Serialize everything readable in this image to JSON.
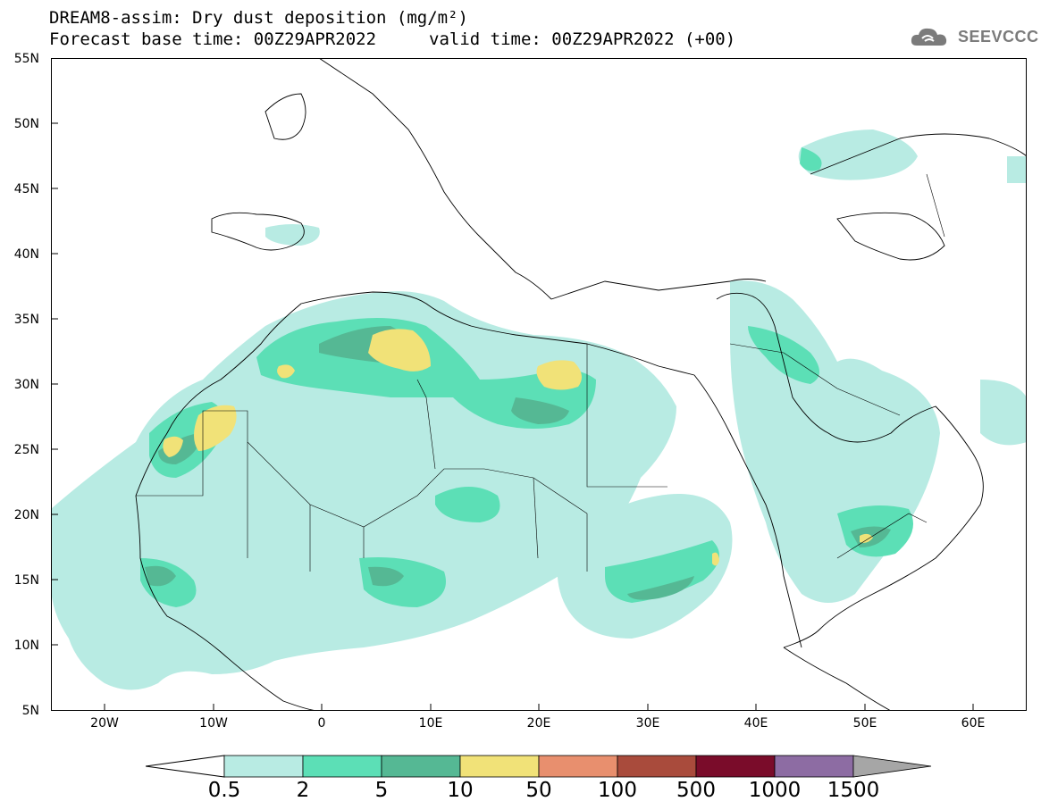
{
  "title": {
    "line1": "DREAM8-assim: Dry dust deposition (mg/m²)",
    "line2_left": "Forecast base time: 00Z29APR2022",
    "line2_right": "valid time: 00Z29APR2022 (+00)"
  },
  "logo": {
    "text": "SEEVCCC"
  },
  "map": {
    "lat_labels": [
      "55N",
      "50N",
      "45N",
      "40N",
      "35N",
      "30N",
      "25N",
      "20N",
      "15N",
      "10N",
      "5N"
    ],
    "lon_labels": [
      "20W",
      "10W",
      "0",
      "10E",
      "20E",
      "30E",
      "40E",
      "50E",
      "60E"
    ],
    "lat_range": [
      5,
      55
    ],
    "lon_range": [
      -25,
      65
    ]
  },
  "colorbar": {
    "labels": [
      "0.5",
      "2",
      "5",
      "10",
      "50",
      "100",
      "500",
      "1000",
      "1500"
    ],
    "colors": [
      "#b8ebe3",
      "#5cdfb6",
      "#55b894",
      "#f1e278",
      "#e88f6e",
      "#a94b3c",
      "#7a0c2a",
      "#8d6ca3",
      "#a6a6a6"
    ]
  },
  "colors": {
    "level1": "#b8ebe3",
    "level2": "#5cdfb6",
    "level3": "#55b894",
    "level4": "#f1e278"
  }
}
